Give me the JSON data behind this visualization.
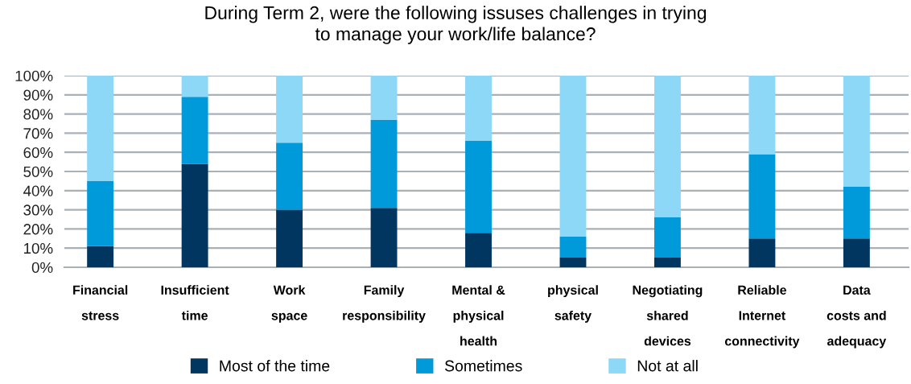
{
  "chart_data": {
    "type": "bar",
    "stacked": true,
    "title": "During Term 2, were the following issuses challenges in trying\nto manage your work/life balance?",
    "categories": [
      "Financial\nstress",
      "Insufficient\ntime",
      "Work\nspace",
      "Family\nresponsibility",
      "Mental &\nphysical\nhealth",
      "physical\nsafety",
      "Negotiating\nshared\ndevices",
      "Reliable\nInternet\nconnectivity",
      "Data\ncosts and\nadequacy"
    ],
    "series": [
      {
        "name": "Most of the time",
        "color": "#003660",
        "values": [
          11,
          54,
          30,
          31,
          18,
          5,
          5,
          15,
          15
        ]
      },
      {
        "name": "Sometimes",
        "color": "#0099da",
        "values": [
          34,
          35,
          35,
          46,
          48,
          11,
          21,
          44,
          27
        ]
      },
      {
        "name": "Not at all",
        "color": "#8dd7f7",
        "values": [
          55,
          11,
          35,
          23,
          34,
          84,
          74,
          41,
          58
        ]
      }
    ],
    "ylim": [
      0,
      100
    ],
    "yticks": [
      {
        "value": 0,
        "label": "0%"
      },
      {
        "value": 10,
        "label": "10%"
      },
      {
        "value": 20,
        "label": "20%"
      },
      {
        "value": 30,
        "label": "30%"
      },
      {
        "value": 40,
        "label": "40%"
      },
      {
        "value": 50,
        "label": "50%"
      },
      {
        "value": 60,
        "label": "60%"
      },
      {
        "value": 70,
        "label": "70%"
      },
      {
        "value": 80,
        "label": "80%"
      },
      {
        "value": 90,
        "label": "90%"
      },
      {
        "value": 100,
        "label": "100%"
      }
    ],
    "grid": "y",
    "legend": "bottom"
  }
}
